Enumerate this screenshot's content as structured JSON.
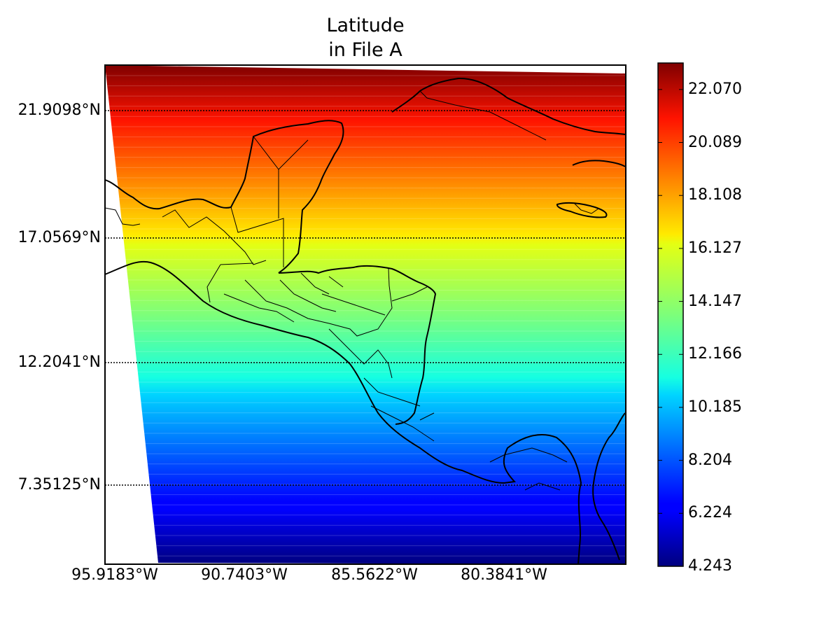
{
  "title": {
    "line1": "Latitude",
    "line2": "in File A"
  },
  "map": {
    "parallels": [
      {
        "label": "21.9098°N",
        "value": 21.9098
      },
      {
        "label": "17.0569°N",
        "value": 17.0569
      },
      {
        "label": "12.2041°N",
        "value": 12.2041
      },
      {
        "label": "7.35125°N",
        "value": 7.35125
      }
    ],
    "meridians": [
      {
        "label": "95.9183°W",
        "value": -95.9183
      },
      {
        "label": "90.7403°W",
        "value": -90.7403
      },
      {
        "label": "85.5622°W",
        "value": -85.5622
      },
      {
        "label": "80.3841°W",
        "value": -80.3841
      }
    ],
    "field": "Latitude",
    "colormap": "jet"
  },
  "colorbar": {
    "min": 4.243,
    "max": 23.06,
    "ticks": [
      "22.070",
      "20.089",
      "18.108",
      "16.127",
      "14.147",
      "12.166",
      "10.185",
      "8.204",
      "6.224",
      "4.243"
    ]
  }
}
